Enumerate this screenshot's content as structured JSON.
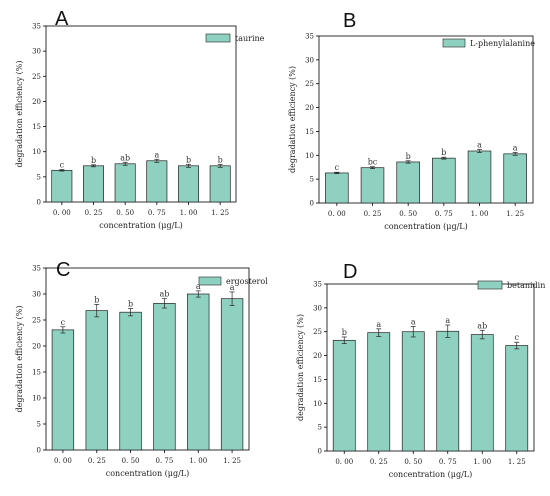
{
  "colors": {
    "bar_fill": "#8fd1c0",
    "bar_stroke": "#222222",
    "axis": "#000000"
  },
  "chart_data": [
    {
      "panel": "A",
      "type": "bar",
      "categories": [
        "0. 00",
        "0. 25",
        "0. 50",
        "0. 75",
        "1. 00",
        "1. 25"
      ],
      "series": [
        {
          "name": "taurine",
          "values": [
            6.3,
            7.2,
            7.6,
            8.2,
            7.2,
            7.2
          ]
        }
      ],
      "errors": [
        0.15,
        0.2,
        0.3,
        0.3,
        0.3,
        0.3
      ],
      "significance": [
        "c",
        "b",
        "ab",
        "a",
        "b",
        "b"
      ],
      "xlabel": "concentration (μg/L)",
      "ylabel": "degradation efficiency (%)",
      "ylim": [
        0,
        35
      ],
      "yticks": [
        "0",
        "5",
        "10",
        "15",
        "20",
        "25",
        "30",
        "35"
      ],
      "legend": "top-right",
      "grid": false
    },
    {
      "panel": "B",
      "type": "bar",
      "categories": [
        "0. 00",
        "0. 25",
        "0. 50",
        "0. 75",
        "1. 00",
        "1. 25"
      ],
      "series": [
        {
          "name": "L-phenylalanine",
          "values": [
            6.3,
            7.4,
            8.6,
            9.4,
            10.9,
            10.3
          ]
        }
      ],
      "errors": [
        0.15,
        0.2,
        0.25,
        0.2,
        0.3,
        0.3
      ],
      "significance": [
        "c",
        "bc",
        "b",
        "b",
        "a",
        "a"
      ],
      "xlabel": "concentration (μg/L)",
      "ylabel": "degradation efficiency (%)",
      "ylim": [
        0,
        35
      ],
      "yticks": [
        "0",
        "5",
        "10",
        "15",
        "20",
        "25",
        "30",
        "35"
      ],
      "legend": "top-right",
      "grid": false
    },
    {
      "panel": "C",
      "type": "bar",
      "categories": [
        "0. 00",
        "0. 25",
        "0. 50",
        "0. 75",
        "1. 00",
        "1. 25"
      ],
      "series": [
        {
          "name": "ergosterol",
          "values": [
            23.1,
            26.8,
            26.5,
            28.2,
            30.0,
            29.1
          ]
        }
      ],
      "errors": [
        0.6,
        1.2,
        0.7,
        0.9,
        0.6,
        1.3
      ],
      "significance": [
        "c",
        "b",
        "b",
        "ab",
        "a",
        "a"
      ],
      "xlabel": "concentration (μg/L)",
      "ylabel": "degradation efficiency (%)",
      "ylim": [
        0,
        35
      ],
      "yticks": [
        "0",
        "5",
        "10",
        "15",
        "20",
        "25",
        "30",
        "35"
      ],
      "legend": "top-right",
      "grid": false
    },
    {
      "panel": "D",
      "type": "bar",
      "categories": [
        "0. 00",
        "0. 25",
        "0. 50",
        "0. 75",
        "1. 00",
        "1. 25"
      ],
      "series": [
        {
          "name": "betanidin",
          "values": [
            23.2,
            24.8,
            25.0,
            25.1,
            24.4,
            22.1
          ]
        }
      ],
      "errors": [
        0.7,
        0.8,
        1.1,
        1.3,
        0.9,
        0.7
      ],
      "significance": [
        "b",
        "a",
        "a",
        "a",
        "ab",
        "c"
      ],
      "xlabel": "concentration (μg/L)",
      "ylabel": "degradation efficiency (%)",
      "ylim": [
        0,
        35
      ],
      "yticks": [
        "0",
        "5",
        "10",
        "15",
        "20",
        "25",
        "30",
        "35"
      ],
      "legend": "top-right",
      "grid": false
    }
  ]
}
